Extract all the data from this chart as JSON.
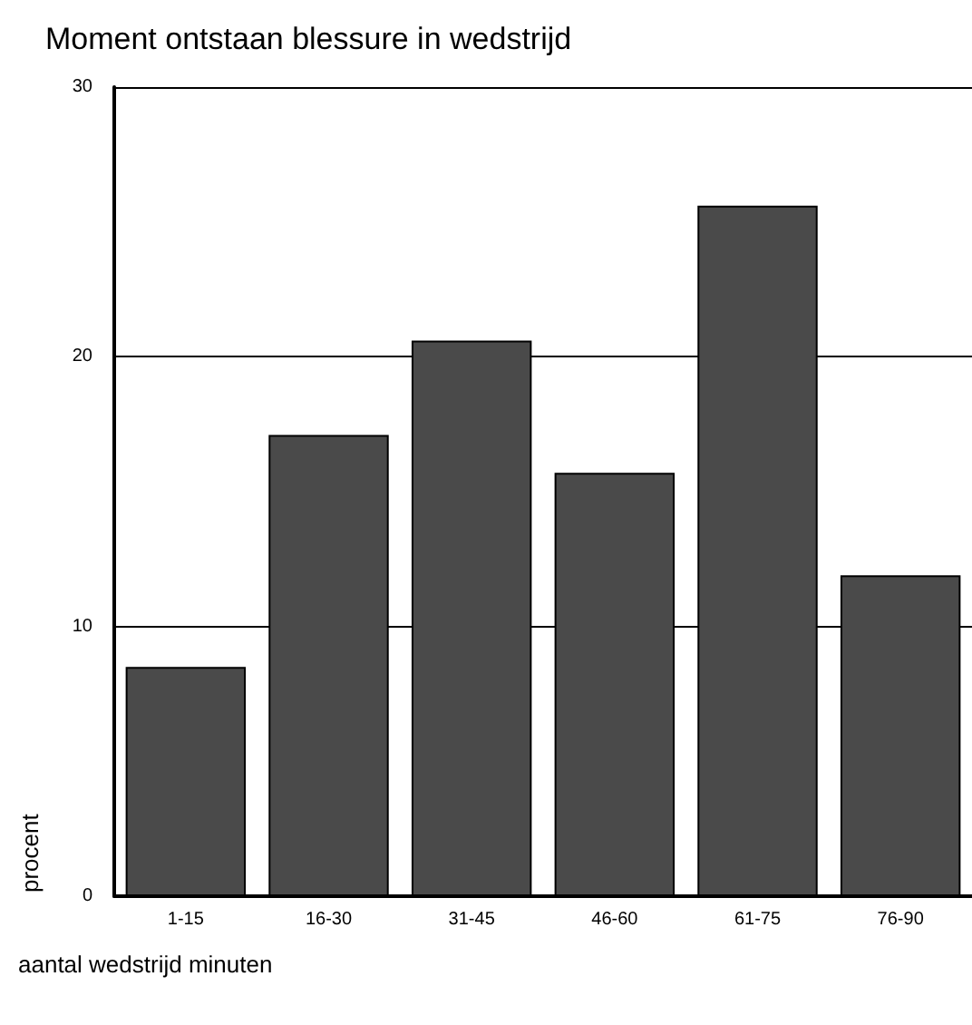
{
  "chart_data": {
    "type": "bar",
    "title": "Moment ontstaan blessure in wedstrijd",
    "xlabel": "aantal wedstrijd minuten",
    "ylabel": "procent",
    "categories": [
      "1-15",
      "16-30",
      "31-45",
      "46-60",
      "61-75",
      "76-90"
    ],
    "values": [
      8.5,
      17.1,
      20.6,
      15.7,
      25.6,
      11.9
    ],
    "color": "#4a4a4a",
    "ylim": [
      0,
      30
    ],
    "yticks": [
      0,
      10,
      20,
      30
    ],
    "grid": "y"
  }
}
